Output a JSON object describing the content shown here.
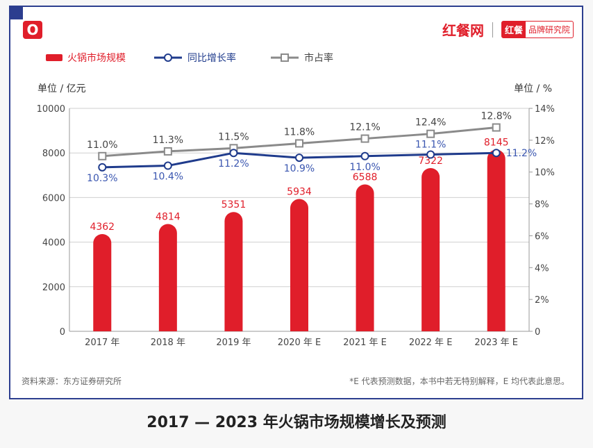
{
  "logo_mark": "O",
  "brand": {
    "name": "红餐网",
    "badge": "红餐",
    "badge_suffix": "品牌研究院"
  },
  "legend": [
    "火锅市场规模",
    "同比增长率",
    "市占率"
  ],
  "left_unit": "单位 / 亿元",
  "right_unit": "单位 / %",
  "source": "资料来源：东方证券研究所",
  "note": "*E 代表预测数据，本书中若无特别解释，E 均代表此意思。",
  "caption": "2017 — 2023 年火锅市场规模增长及预测",
  "colors": {
    "bar": "#e01e2a",
    "growth": "#1f3b8c",
    "share": "#8a8a8a",
    "frame": "#2c3e8f"
  },
  "chart_data": {
    "type": "bar",
    "categories": [
      "2017 年",
      "2018 年",
      "2019 年",
      "2020 年 E",
      "2021 年 E",
      "2022 年 E",
      "2023 年 E"
    ],
    "series": [
      {
        "name": "火锅市场规模",
        "type": "bar",
        "axis": "left",
        "values": [
          4362,
          4814,
          5351,
          5934,
          6588,
          7322,
          8145
        ],
        "labels": [
          "4362",
          "4814",
          "5351",
          "5934",
          "6588",
          "7322",
          "8145"
        ]
      },
      {
        "name": "同比增长率",
        "type": "line",
        "axis": "right",
        "values": [
          10.3,
          10.4,
          11.2,
          10.9,
          11.0,
          11.1,
          11.2
        ],
        "labels": [
          "10.3%",
          "10.4%",
          "11.2%",
          "10.9%",
          "11.0%",
          "11.1%",
          "11.2%"
        ]
      },
      {
        "name": "市占率",
        "type": "line",
        "axis": "right",
        "values": [
          11.0,
          11.3,
          11.5,
          11.8,
          12.1,
          12.4,
          12.8
        ],
        "labels": [
          "11.0%",
          "11.3%",
          "11.5%",
          "11.8%",
          "12.1%",
          "12.4%",
          "12.8%"
        ]
      }
    ],
    "ylim_left": [
      0,
      10000
    ],
    "yticks_left": [
      "0",
      "2000",
      "4000",
      "6000",
      "8000",
      "10000"
    ],
    "ylim_right": [
      0,
      14
    ],
    "yticks_right": [
      "0",
      "2%",
      "4%",
      "6%",
      "8%",
      "10%",
      "12%",
      "14%"
    ],
    "grid": true,
    "legend_position": "top-left"
  }
}
